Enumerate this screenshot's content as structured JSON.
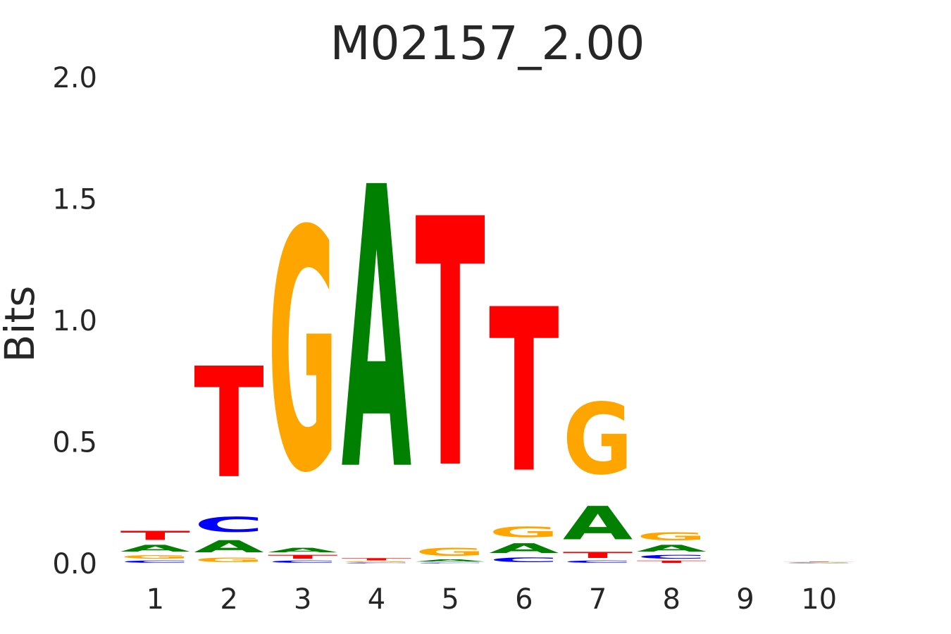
{
  "chart_data": {
    "type": "sequence-logo",
    "title": "M02157_2.00",
    "xlabel": "",
    "ylabel": "Bits",
    "ylim": [
      0,
      2
    ],
    "yticks": [
      "0.0",
      "0.5",
      "1.0",
      "1.5",
      "2.0"
    ],
    "categories": [
      "1",
      "2",
      "3",
      "4",
      "5",
      "6",
      "7",
      "8",
      "9",
      "10"
    ],
    "grid": false,
    "colors": {
      "A": "#008000",
      "C": "#0000ff",
      "G": "#ffa500",
      "T": "#ff0000"
    },
    "positions": [
      [
        {
          "base": "C",
          "bits": 0.015
        },
        {
          "base": "G",
          "bits": 0.025
        },
        {
          "base": "A",
          "bits": 0.045
        },
        {
          "base": "T",
          "bits": 0.06
        }
      ],
      [
        {
          "base": "G",
          "bits": 0.03
        },
        {
          "base": "A",
          "bits": 0.08
        },
        {
          "base": "C",
          "bits": 0.1
        },
        {
          "base": "T",
          "bits": 0.73
        }
      ],
      [
        {
          "base": "C",
          "bits": 0.015
        },
        {
          "base": "T",
          "bits": 0.025
        },
        {
          "base": "A",
          "bits": 0.03
        },
        {
          "base": "G",
          "bits": 1.59
        }
      ],
      [
        {
          "base": "C",
          "bits": 0.005
        },
        {
          "base": "G",
          "bits": 0.005
        },
        {
          "base": "T",
          "bits": 0.015
        },
        {
          "base": "A",
          "bits": 1.86
        }
      ],
      [
        {
          "base": "C",
          "bits": 0.005
        },
        {
          "base": "A",
          "bits": 0.015
        },
        {
          "base": "G",
          "bits": 0.055
        },
        {
          "base": "T",
          "bits": 1.64
        }
      ],
      [
        {
          "base": "C",
          "bits": 0.03
        },
        {
          "base": "A",
          "bits": 0.065
        },
        {
          "base": "G",
          "bits": 0.07
        },
        {
          "base": "T",
          "bits": 1.08
        }
      ],
      [
        {
          "base": "C",
          "bits": 0.015
        },
        {
          "base": "T",
          "bits": 0.04
        },
        {
          "base": "A",
          "bits": 0.22
        },
        {
          "base": "G",
          "bits": 0.47
        }
      ],
      [
        {
          "base": "T",
          "bits": 0.015
        },
        {
          "base": "C",
          "bits": 0.025
        },
        {
          "base": "A",
          "bits": 0.045
        },
        {
          "base": "G",
          "bits": 0.055
        }
      ],
      [
        {
          "base": "A",
          "bits": 0.001
        },
        {
          "base": "C",
          "bits": 0.001
        },
        {
          "base": "G",
          "bits": 0.001
        },
        {
          "base": "T",
          "bits": 0.001
        }
      ],
      [
        {
          "base": "A",
          "bits": 0.002
        },
        {
          "base": "C",
          "bits": 0.002
        },
        {
          "base": "G",
          "bits": 0.002
        },
        {
          "base": "T",
          "bits": 0.003
        }
      ]
    ]
  }
}
